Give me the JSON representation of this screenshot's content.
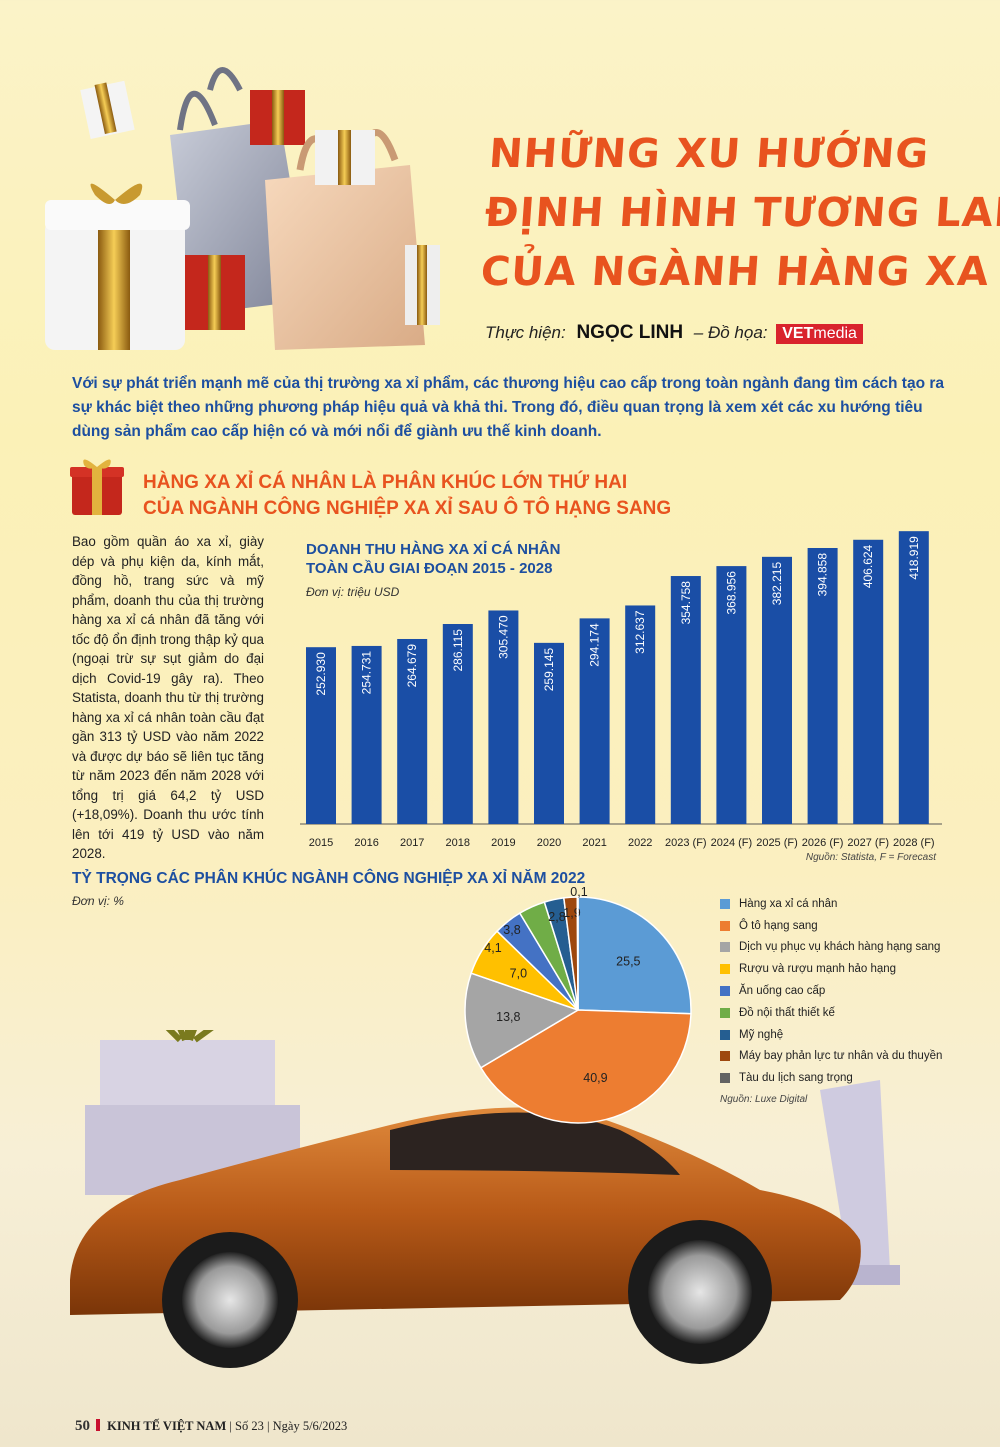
{
  "title": {
    "line1": "NHỮNG XU HƯỚNG",
    "line2": "ĐỊNH HÌNH TƯƠNG LAI",
    "line3": "CỦA NGÀNH HÀNG XA XỈ"
  },
  "credits": {
    "by_label": "Thực hiện:",
    "author": "NGỌC LINH",
    "graphics_label": "– Đồ họa:",
    "brand_vet": "VET",
    "brand_media": "media"
  },
  "lead": "Với sự phát triển mạnh mẽ của thị trường xa xỉ phẩm, các thương hiệu cao cấp trong toàn ngành đang tìm cách tạo ra sự khác biệt theo những phương pháp hiệu quả và khả thi. Trong đó, điều quan trọng là xem xét các xu hướng tiêu dùng sản phẩm cao cấp hiện có và mới nổi để giành ưu thế kinh doanh.",
  "section": {
    "line1": "HÀNG XA XỈ CÁ NHÂN LÀ PHÂN KHÚC LỚN THỨ HAI",
    "line2": "CỦA NGÀNH CÔNG NGHIỆP XA XỈ SAU Ô TÔ HẠNG SANG"
  },
  "body_text": "Bao gồm quần áo xa xỉ, giày dép và phụ kiện da, kính mắt, đồng hồ, trang sức và mỹ phẩm, doanh thu của thị trường hàng xa xỉ cá nhân đã tăng với tốc độ ổn định trong thập kỷ qua (ngoại trừ sự sụt giảm do đại dịch Covid-19 gây ra). Theo Statista, doanh thu từ thị trường hàng xa xỉ cá nhân toàn cầu đạt gần 313 tỷ USD vào năm 2022 và được dự báo sẽ liên tục tăng từ năm 2023 đến năm 2028 với tổng trị giá 64,2 tỷ USD (+18,09%). Doanh thu ước tính lên tới 419 tỷ USD vào năm 2028.",
  "chart_data": [
    {
      "type": "bar",
      "title": "DOANH THU HÀNG XA XỈ CÁ NHÂN",
      "title2": "TOÀN CẦU GIAI ĐOẠN 2015 - 2028",
      "unit": "Đơn vị: triệu USD",
      "source": "Nguồn: Statista, F = Forecast",
      "categories": [
        "2015",
        "2016",
        "2017",
        "2018",
        "2019",
        "2020",
        "2021",
        "2022",
        "2023 (F)",
        "2024 (F)",
        "2025 (F)",
        "2026 (F)",
        "2027 (F)",
        "2028 (F)"
      ],
      "values": [
        252930,
        254731,
        264679,
        286115,
        305470,
        259145,
        294174,
        312637,
        354758,
        368956,
        382215,
        394858,
        406624,
        418919
      ],
      "labels": [
        "252.930",
        "254.731",
        "264.679",
        "286.115",
        "305.470",
        "259.145",
        "294.174",
        "312.637",
        "354.758",
        "368.956",
        "382.215",
        "394.858",
        "406.624",
        "418.919"
      ],
      "color": "#1a4ea6",
      "label_color": "#ffffff"
    },
    {
      "type": "pie",
      "title": "TỶ TRỌNG CÁC PHÂN KHÚC NGÀNH CÔNG NGHIỆP XA XỈ NĂM 2022",
      "unit": "Đơn vị: %",
      "source": "Nguồn: Luxe Digital",
      "slices": [
        {
          "name": "Hàng xa xỉ cá nhân",
          "value": 25.5,
          "label": "25,5",
          "color": "#5b9bd5"
        },
        {
          "name": "Ô tô hạng sang",
          "value": 40.9,
          "label": "40,9",
          "color": "#ed7d31"
        },
        {
          "name": "Dịch vụ phục vụ khách hàng hạng sang",
          "value": 13.8,
          "label": "13,8",
          "color": "#a5a5a5"
        },
        {
          "name": "Rượu và rượu mạnh hảo hạng",
          "value": 7.0,
          "label": "7,0",
          "color": "#ffc000"
        },
        {
          "name": "Ăn uống cao cấp",
          "value": 4.1,
          "label": "4,1",
          "color": "#4472c4"
        },
        {
          "name": "Đồ nội thất thiết kế",
          "value": 3.8,
          "label": "3,8",
          "color": "#70ad47"
        },
        {
          "name": "Mỹ nghệ",
          "value": 2.8,
          "label": "2,8",
          "color": "#255e91"
        },
        {
          "name": "Máy bay phản lực tư nhân và du thuyền",
          "value": 1.9,
          "label": "1,9",
          "color": "#9e480e"
        },
        {
          "name": "Tàu du lịch sang trọng",
          "value": 0.1,
          "label": "0,1",
          "color": "#636363"
        }
      ]
    }
  ],
  "footer": {
    "page": "50",
    "magazine": "KINH TẾ VIỆT NAM",
    "issue": "Số 23",
    "date": "Ngày 5/6/2023"
  }
}
